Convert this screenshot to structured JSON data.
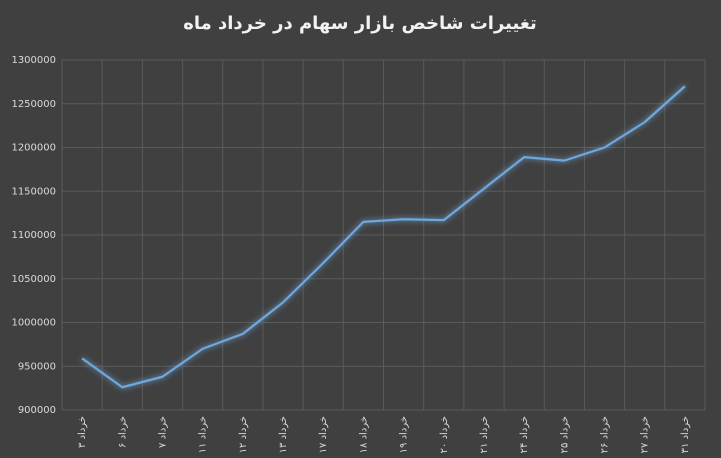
{
  "chart_data": {
    "type": "line",
    "title": "تغییرات شاخص بازار سهام در خرداد ماه",
    "categories": [
      "۳ خرداد",
      "۶ خرداد",
      "۷ خرداد",
      "۱۱ خرداد",
      "۱۲ خرداد",
      "۱۳ خرداد",
      "۱۷ خرداد",
      "۱۸ خرداد",
      "۱۹ خرداد",
      "۲۰ خرداد",
      "۲۱ خرداد",
      "۲۴ خرداد",
      "۲۵ خرداد",
      "۲۶ خرداد",
      "۲۷ خرداد",
      "۳۱ خرداد"
    ],
    "values": [
      959000,
      926000,
      938000,
      970000,
      987000,
      1023000,
      1068000,
      1115000,
      1118000,
      1117000,
      1153000,
      1189000,
      1185000,
      1200000,
      1229000,
      1270000
    ],
    "color": "#6fa8dc",
    "ylim": [
      900000,
      1300000
    ],
    "yticks": [
      900000,
      950000,
      1000000,
      1050000,
      1100000,
      1150000,
      1200000,
      1250000,
      1300000
    ],
    "grid": true
  }
}
